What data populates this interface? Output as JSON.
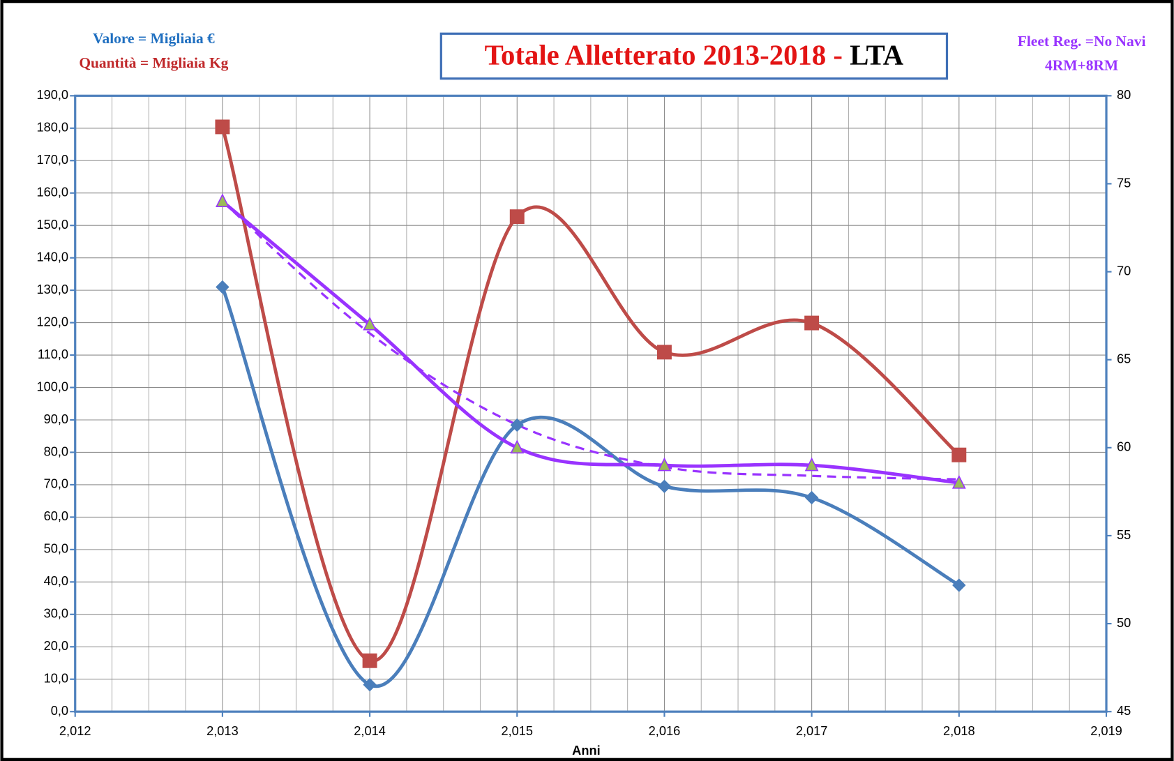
{
  "chart_data": {
    "type": "line",
    "title": "Totale Alletterato 2013-2018 -",
    "title_suffix": "LTA",
    "annotations": [
      "Valore = Migliaia €",
      "Quantità = Migliaia Kg",
      "Fleet Reg. =No Navi",
      "4RM+8RM"
    ],
    "x_label": "Anni",
    "x": [
      2013,
      2014,
      2015,
      2016,
      2017,
      2018
    ],
    "series": [
      {
        "color": "#4a7ebb",
        "marker": "diamond",
        "values": [
          131,
          8.3,
          88.4,
          69.5,
          66,
          39
        ]
      },
      {
        "color": "#be4b48",
        "marker": "square",
        "values": [
          180.4,
          15.7,
          152.7,
          110.9,
          119.9,
          79.2
        ]
      },
      {
        "color": "#9933ff",
        "marker": "triangle",
        "marker_fill": "#9bbb59",
        "axis": "y2",
        "values": [
          74,
          67,
          60,
          59,
          59,
          58
        ]
      },
      {
        "color": "#9933ff",
        "dashed": true,
        "axis": "y2",
        "values": [
          74,
          66.5,
          61.3,
          58.9,
          58.4,
          58.2
        ]
      }
    ],
    "xlim": [
      2012,
      2019
    ],
    "xticks": [
      {
        "value": 2012,
        "label": "2,012"
      },
      {
        "value": 2013,
        "label": "2,013"
      },
      {
        "value": 2014,
        "label": "2,014"
      },
      {
        "value": 2015,
        "label": "2,015"
      },
      {
        "value": 2016,
        "label": "2,016"
      },
      {
        "value": 2017,
        "label": "2,017"
      },
      {
        "value": 2018,
        "label": "2,018"
      },
      {
        "value": 2019,
        "label": "2,019"
      }
    ],
    "ylim": [
      0,
      190
    ],
    "yticks": [
      {
        "value": 0,
        "label": "0,0"
      },
      {
        "value": 10,
        "label": "10,0"
      },
      {
        "value": 20,
        "label": "20,0"
      },
      {
        "value": 30,
        "label": "30,0"
      },
      {
        "value": 40,
        "label": "40,0"
      },
      {
        "value": 50,
        "label": "50,0"
      },
      {
        "value": 60,
        "label": "60,0"
      },
      {
        "value": 70,
        "label": "70,0"
      },
      {
        "value": 80,
        "label": "80,0"
      },
      {
        "value": 90,
        "label": "90,0"
      },
      {
        "value": 100,
        "label": "100,0"
      },
      {
        "value": 110,
        "label": "110,0"
      },
      {
        "value": 120,
        "label": "120,0"
      },
      {
        "value": 130,
        "label": "130,0"
      },
      {
        "value": 140,
        "label": "140,0"
      },
      {
        "value": 150,
        "label": "150,0"
      },
      {
        "value": 160,
        "label": "160,0"
      },
      {
        "value": 170,
        "label": "170,0"
      },
      {
        "value": 180,
        "label": "180,0"
      },
      {
        "value": 190,
        "label": "190,0"
      }
    ],
    "y2lim": [
      45,
      80
    ],
    "y2ticks": [
      45,
      50,
      55,
      60,
      65,
      70,
      75,
      80
    ],
    "grid": true,
    "smooth": true
  }
}
